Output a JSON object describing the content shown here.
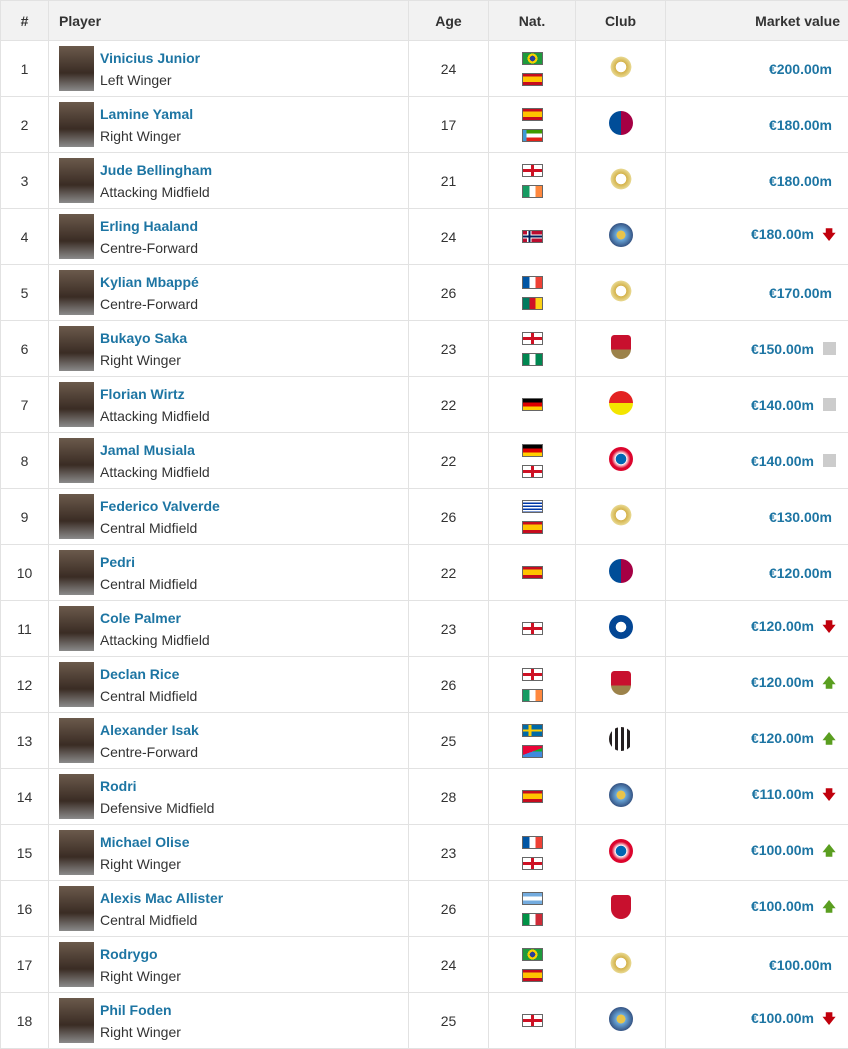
{
  "headers": {
    "rank": "#",
    "player": "Player",
    "age": "Age",
    "nat": "Nat.",
    "club": "Club",
    "value": "Market value"
  },
  "colors": {
    "link": "#1d75a3",
    "down": "#c0000c",
    "up": "#5a9e20",
    "same": "#cccccc"
  },
  "rows": [
    {
      "rank": "1",
      "name": "Vinicius Junior",
      "pos": "Left Winger",
      "age": "24",
      "nat": [
        "Brazil",
        "Spain"
      ],
      "club": "Real Madrid",
      "value": "€200.00m",
      "trend": "none"
    },
    {
      "rank": "2",
      "name": "Lamine Yamal",
      "pos": "Right Winger",
      "age": "17",
      "nat": [
        "Spain",
        "Equatorial Guinea"
      ],
      "club": "FC Barcelona",
      "value": "€180.00m",
      "trend": "none"
    },
    {
      "rank": "3",
      "name": "Jude Bellingham",
      "pos": "Attacking Midfield",
      "age": "21",
      "nat": [
        "England",
        "Ireland"
      ],
      "club": "Real Madrid",
      "value": "€180.00m",
      "trend": "none"
    },
    {
      "rank": "4",
      "name": "Erling Haaland",
      "pos": "Centre-Forward",
      "age": "24",
      "nat": [
        "Norway"
      ],
      "club": "Manchester City",
      "value": "€180.00m",
      "trend": "down"
    },
    {
      "rank": "5",
      "name": "Kylian Mbappé",
      "pos": "Centre-Forward",
      "age": "26",
      "nat": [
        "France",
        "Cameroon"
      ],
      "club": "Real Madrid",
      "value": "€170.00m",
      "trend": "none"
    },
    {
      "rank": "6",
      "name": "Bukayo Saka",
      "pos": "Right Winger",
      "age": "23",
      "nat": [
        "England",
        "Nigeria"
      ],
      "club": "Arsenal",
      "value": "€150.00m",
      "trend": "same"
    },
    {
      "rank": "7",
      "name": "Florian Wirtz",
      "pos": "Attacking Midfield",
      "age": "22",
      "nat": [
        "Germany"
      ],
      "club": "Bayer Leverkusen",
      "value": "€140.00m",
      "trend": "same"
    },
    {
      "rank": "8",
      "name": "Jamal Musiala",
      "pos": "Attacking Midfield",
      "age": "22",
      "nat": [
        "Germany",
        "England"
      ],
      "club": "Bayern Munich",
      "value": "€140.00m",
      "trend": "same"
    },
    {
      "rank": "9",
      "name": "Federico Valverde",
      "pos": "Central Midfield",
      "age": "26",
      "nat": [
        "Uruguay",
        "Spain"
      ],
      "club": "Real Madrid",
      "value": "€130.00m",
      "trend": "none"
    },
    {
      "rank": "10",
      "name": "Pedri",
      "pos": "Central Midfield",
      "age": "22",
      "nat": [
        "Spain"
      ],
      "club": "FC Barcelona",
      "value": "€120.00m",
      "trend": "none"
    },
    {
      "rank": "11",
      "name": "Cole Palmer",
      "pos": "Attacking Midfield",
      "age": "23",
      "nat": [
        "England"
      ],
      "club": "Chelsea",
      "value": "€120.00m",
      "trend": "down"
    },
    {
      "rank": "12",
      "name": "Declan Rice",
      "pos": "Central Midfield",
      "age": "26",
      "nat": [
        "England",
        "Ireland"
      ],
      "club": "Arsenal",
      "value": "€120.00m",
      "trend": "up"
    },
    {
      "rank": "13",
      "name": "Alexander Isak",
      "pos": "Centre-Forward",
      "age": "25",
      "nat": [
        "Sweden",
        "Eritrea"
      ],
      "club": "Newcastle United",
      "value": "€120.00m",
      "trend": "up"
    },
    {
      "rank": "14",
      "name": "Rodri",
      "pos": "Defensive Midfield",
      "age": "28",
      "nat": [
        "Spain"
      ],
      "club": "Manchester City",
      "value": "€110.00m",
      "trend": "down"
    },
    {
      "rank": "15",
      "name": "Michael Olise",
      "pos": "Right Winger",
      "age": "23",
      "nat": [
        "France",
        "England"
      ],
      "club": "Bayern Munich",
      "value": "€100.00m",
      "trend": "up"
    },
    {
      "rank": "16",
      "name": "Alexis Mac Allister",
      "pos": "Central Midfield",
      "age": "26",
      "nat": [
        "Argentina",
        "Italy"
      ],
      "club": "Liverpool",
      "value": "€100.00m",
      "trend": "up"
    },
    {
      "rank": "17",
      "name": "Rodrygo",
      "pos": "Right Winger",
      "age": "24",
      "nat": [
        "Brazil",
        "Spain"
      ],
      "club": "Real Madrid",
      "value": "€100.00m",
      "trend": "none"
    },
    {
      "rank": "18",
      "name": "Phil Foden",
      "pos": "Right Winger",
      "age": "25",
      "nat": [
        "England"
      ],
      "club": "Manchester City",
      "value": "€100.00m",
      "trend": "down"
    }
  ]
}
